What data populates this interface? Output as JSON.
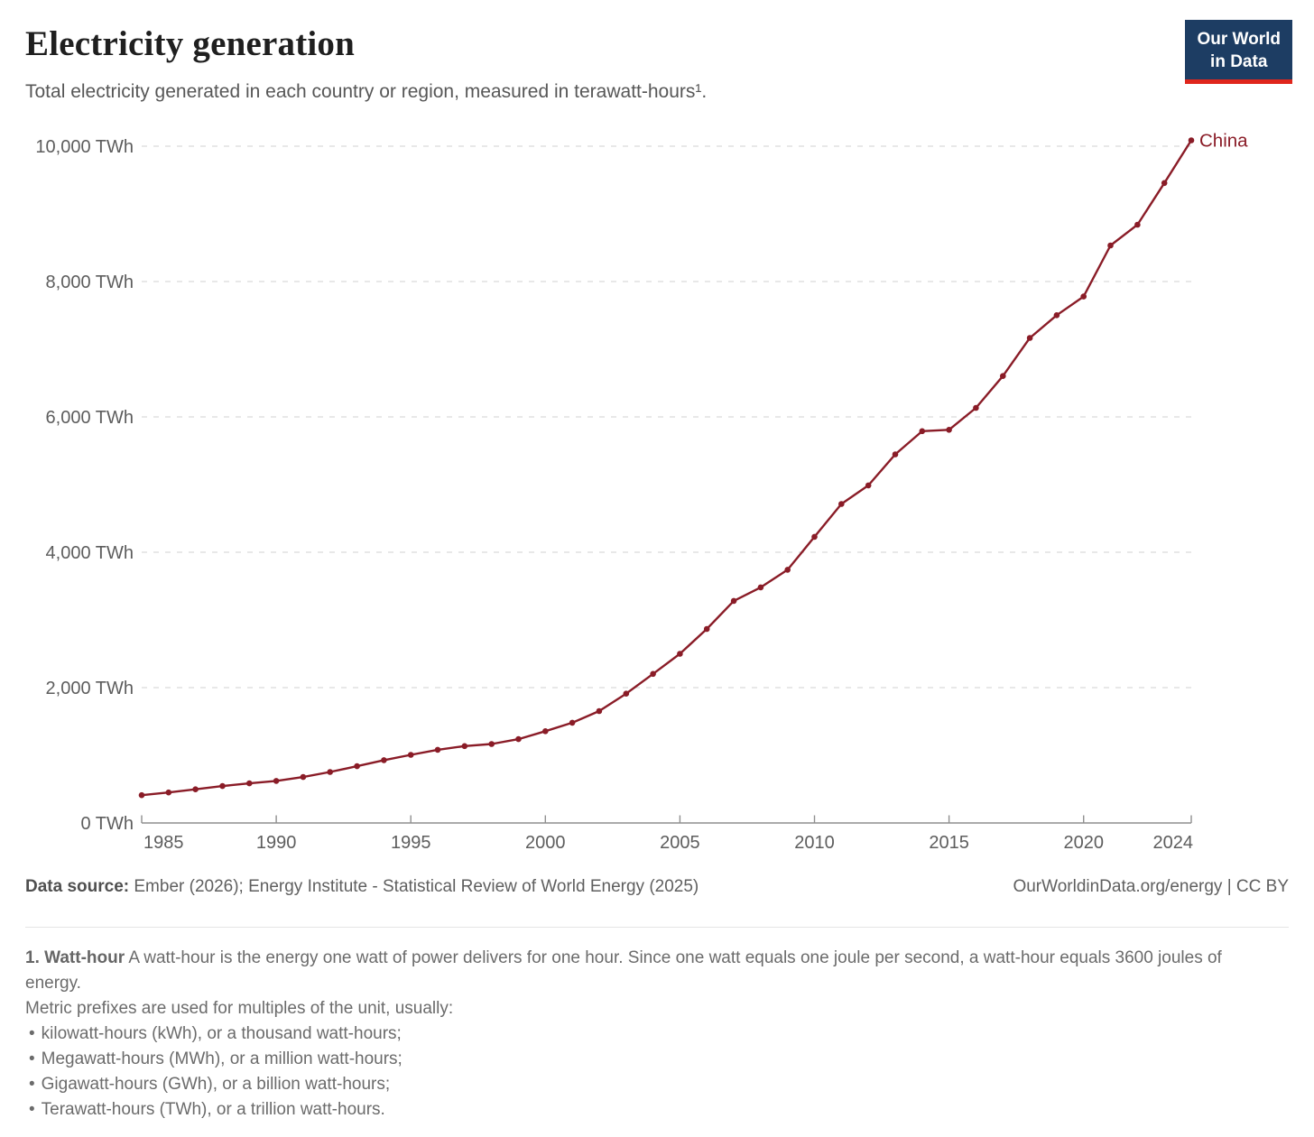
{
  "header": {
    "title": "Electricity generation",
    "subtitle": "Total electricity generated in each country or region, measured in terawatt-hours¹.",
    "logo": {
      "line1": "Our World",
      "line2": "in Data"
    }
  },
  "chart_data": {
    "type": "line",
    "title": "Electricity generation",
    "unit": "TWh",
    "grid": "horizontal-dashed",
    "legend_position": "end-of-line-label",
    "ylim": [
      0,
      10000
    ],
    "yticks": [
      0,
      2000,
      4000,
      6000,
      8000,
      10000
    ],
    "y_tick_labels": [
      "0 TWh",
      "2,000 TWh",
      "4,000 TWh",
      "6,000 TWh",
      "8,000 TWh",
      "10,000 TWh"
    ],
    "x_tick_labels": [
      "1985",
      "1990",
      "1995",
      "2000",
      "2005",
      "2010",
      "2015",
      "2020",
      "2024"
    ],
    "x": [
      1985,
      1986,
      1987,
      1988,
      1989,
      1990,
      1991,
      1992,
      1993,
      1994,
      1995,
      1996,
      1997,
      1998,
      1999,
      2000,
      2001,
      2002,
      2003,
      2004,
      2005,
      2006,
      2007,
      2008,
      2009,
      2010,
      2011,
      2012,
      2013,
      2014,
      2015,
      2016,
      2017,
      2018,
      2019,
      2020,
      2021,
      2022,
      2023,
      2024
    ],
    "series": [
      {
        "name": "China",
        "values": [
          411,
          451,
          497,
          545,
          585,
          621,
          678,
          754,
          839,
          928,
          1007,
          1081,
          1136,
          1167,
          1239,
          1356,
          1481,
          1654,
          1911,
          2203,
          2500,
          2866,
          3282,
          3482,
          3742,
          4228,
          4713,
          4988,
          5447,
          5790,
          5810,
          6133,
          6604,
          7166,
          7503,
          7779,
          8534,
          8840,
          9456,
          10087
        ]
      }
    ]
  },
  "footer": {
    "source_label": "Data source:",
    "source_text": " Ember (2026); Energy Institute - Statistical Review of World Energy (2025)",
    "link_text": "OurWorldinData.org/energy | CC BY"
  },
  "footnote": {
    "ref_label": "1. Watt-hour",
    "ref_text": " A watt-hour is the energy one watt of power delivers for one hour. Since one watt equals one joule per second, a watt-hour equals 3600 joules of energy.",
    "line2": "Metric prefixes are used for multiples of the unit, usually:",
    "bullet_char": "•",
    "bullets": [
      "kilowatt-hours (kWh), or a thousand watt-hours;",
      "Megawatt-hours (MWh), or a million watt-hours;",
      "Gigawatt-hours (GWh), or a billion watt-hours;",
      "Terawatt-hours (TWh), or a trillion watt-hours."
    ]
  },
  "colors": {
    "line": "#8a1c27",
    "grid": "#d9d9d9",
    "axis": "#8f8f8f",
    "tick_text": "#5d5d5d",
    "logo_bg": "#1d3d63",
    "logo_red": "#e0261c"
  }
}
